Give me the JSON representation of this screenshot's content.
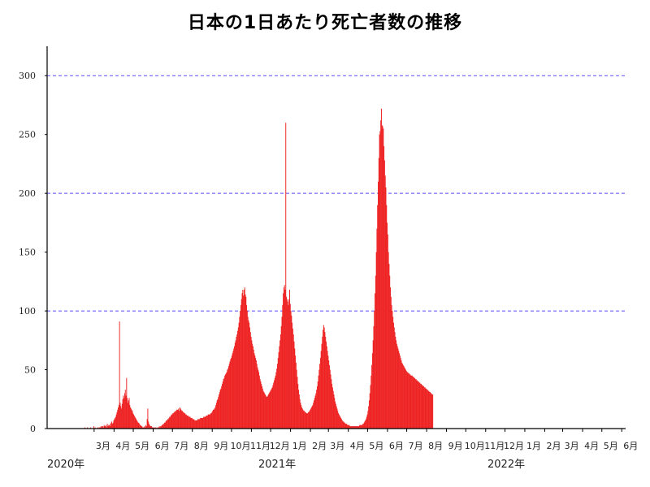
{
  "chart_data": {
    "type": "bar",
    "title": "日本の1日あたり死亡者数の推移",
    "xlabel": "",
    "ylabel": "",
    "ylim": [
      0,
      325
    ],
    "yticks": [
      0,
      50,
      100,
      150,
      200,
      250,
      300
    ],
    "grid": {
      "y": true,
      "lines": [
        100,
        200,
        300
      ],
      "style": "dashed",
      "color": "#5b4bff"
    },
    "bar_color": "#ee2222",
    "month_labels": [
      "3月",
      "4月",
      "5月",
      "6月",
      "7月",
      "8月",
      "9月",
      "10月",
      "11月",
      "12月",
      "1月",
      "2月",
      "3月",
      "4月",
      "5月",
      "6月",
      "7月",
      "8月",
      "9月",
      "10月",
      "11月",
      "12月",
      "1月",
      "2月",
      "3月",
      "4月",
      "5月",
      "6月"
    ],
    "year_labels": [
      "2020年",
      "2021年",
      "2022年"
    ],
    "series": [
      {
        "x_start": "2020-02-13",
        "values": [
          0,
          0,
          1,
          0,
          0,
          0,
          1,
          0,
          0,
          0,
          0,
          1,
          0,
          0,
          0,
          0,
          2,
          0,
          1,
          0,
          0,
          0,
          1,
          1,
          0,
          1,
          1,
          2,
          1,
          2,
          2,
          1,
          3,
          2,
          2,
          3,
          1,
          4,
          2,
          3,
          3,
          2,
          4,
          5,
          6,
          4,
          5,
          7,
          8,
          9,
          10,
          12,
          14,
          16,
          18,
          20,
          91,
          22,
          19,
          17,
          21,
          25,
          28,
          26,
          30,
          33,
          28,
          43,
          26,
          22,
          24,
          26,
          20,
          18,
          17,
          16,
          15,
          13,
          12,
          11,
          10,
          9,
          8,
          7,
          6,
          5,
          5,
          4,
          3,
          3,
          2,
          2,
          1,
          1,
          1,
          2,
          1,
          3,
          2,
          8,
          17,
          6,
          4,
          3,
          2,
          2,
          2,
          1,
          1,
          1,
          0,
          1,
          1,
          0,
          1,
          0,
          1,
          1,
          2,
          1,
          2,
          2,
          3,
          3,
          4,
          4,
          5,
          5,
          6,
          7,
          7,
          8,
          8,
          9,
          10,
          10,
          11,
          12,
          12,
          13,
          13,
          14,
          14,
          15,
          15,
          16,
          16,
          16,
          17,
          15,
          18,
          17,
          16,
          15,
          15,
          14,
          14,
          13,
          13,
          12,
          12,
          11,
          11,
          11,
          10,
          10,
          10,
          9,
          9,
          9,
          8,
          8,
          8,
          7,
          7,
          7,
          7,
          7,
          8,
          8,
          8,
          8,
          9,
          9,
          9,
          9,
          9,
          10,
          10,
          10,
          10,
          11,
          11,
          11,
          12,
          12,
          12,
          12,
          13,
          13,
          14,
          15,
          16,
          16,
          17,
          18,
          20,
          22,
          24,
          25,
          27,
          29,
          31,
          33,
          34,
          36,
          38,
          40,
          42,
          43,
          45,
          46,
          47,
          48,
          50,
          51,
          53,
          55,
          57,
          59,
          60,
          62,
          64,
          66,
          68,
          70,
          73,
          75,
          78,
          80,
          83,
          86,
          90,
          95,
          100,
          105,
          110,
          115,
          118,
          113,
          118,
          120,
          114,
          112,
          105,
          100,
          95,
          92,
          90,
          86,
          82,
          78,
          75,
          72,
          70,
          67,
          64,
          62,
          60,
          58,
          55,
          52,
          50,
          48,
          45,
          42,
          40,
          38,
          36,
          34,
          32,
          31,
          30,
          29,
          28,
          27,
          27,
          28,
          29,
          30,
          31,
          32,
          33,
          34,
          35,
          37,
          39,
          41,
          43,
          45,
          48,
          51,
          55,
          60,
          65,
          70,
          75,
          80,
          87,
          95,
          105,
          115,
          120,
          122,
          118,
          260,
          112,
          110,
          108,
          105,
          110,
          118,
          106,
          100,
          96,
          90,
          85,
          80,
          74,
          68,
          62,
          56,
          50,
          44,
          38,
          33,
          29,
          25,
          22,
          20,
          18,
          17,
          16,
          15,
          15,
          14,
          14,
          13,
          13,
          13,
          14,
          14,
          15,
          16,
          17,
          18,
          19,
          20,
          22,
          24,
          26,
          28,
          30,
          33,
          36,
          40,
          45,
          50,
          55,
          60,
          66,
          72,
          78,
          84,
          88,
          86,
          82,
          78,
          74,
          70,
          66,
          62,
          58,
          54,
          50,
          46,
          42,
          38,
          35,
          32,
          29,
          26,
          23,
          21,
          19,
          17,
          15,
          13,
          12,
          11,
          10,
          9,
          8,
          7,
          6,
          6,
          5,
          5,
          4,
          4,
          4,
          3,
          3,
          3,
          3,
          2,
          2,
          2,
          2,
          2,
          2,
          2,
          2,
          2,
          2,
          2,
          2,
          2,
          2,
          2,
          3,
          3,
          3,
          3,
          3,
          4,
          4,
          5,
          6,
          7,
          8,
          10,
          12,
          15,
          19,
          24,
          30,
          37,
          45,
          54,
          64,
          75,
          87,
          100,
          115,
          130,
          150,
          170,
          190,
          210,
          230,
          250,
          253,
          262,
          272,
          258,
          257,
          255,
          240,
          228,
          215,
          205,
          190,
          175,
          165,
          150,
          140,
          130,
          120,
          112,
          105,
          100,
          95,
          90,
          86,
          82,
          78,
          75,
          72,
          70,
          68,
          66,
          64,
          62,
          60,
          58,
          56,
          55,
          54,
          53,
          52,
          51,
          50,
          49,
          48,
          48,
          47,
          47,
          46,
          46,
          45,
          45,
          45,
          44,
          44,
          43,
          43,
          42,
          42,
          41,
          41,
          40,
          40,
          39,
          39,
          38,
          38,
          37,
          37,
          36,
          36,
          35,
          35,
          34,
          34,
          33,
          33,
          32,
          32,
          31,
          31,
          30,
          30,
          29,
          29
        ]
      }
    ]
  }
}
